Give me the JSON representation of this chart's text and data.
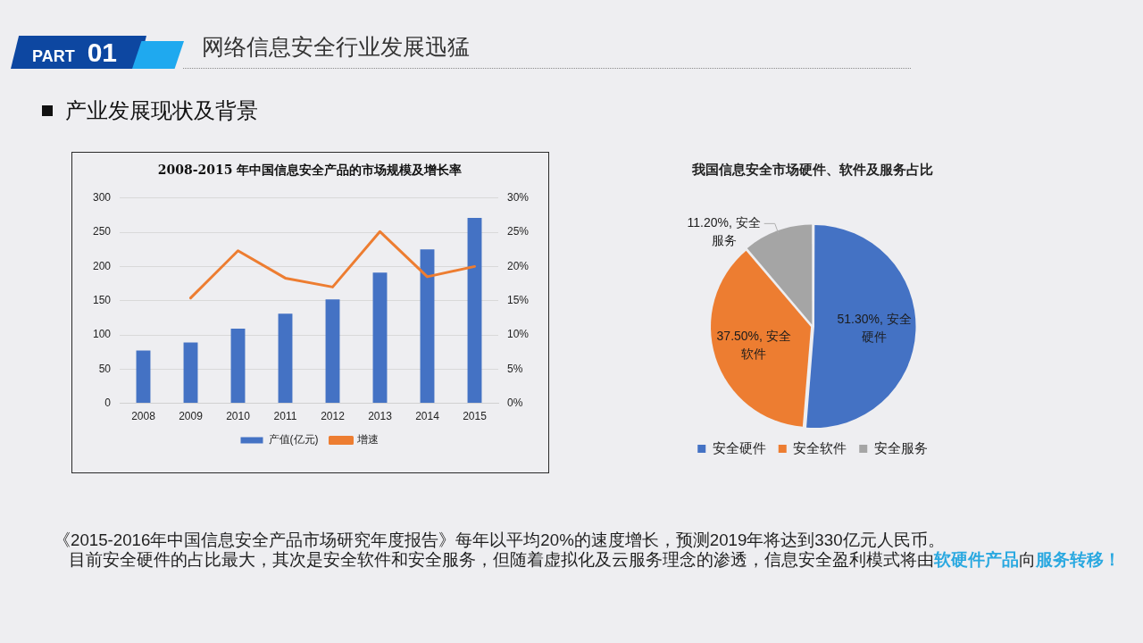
{
  "chart_data": [
    {
      "type": "bar",
      "title": "2008-2015 年中国信息安全产品的市场规模及增长率",
      "categories": [
        "2008",
        "2009",
        "2010",
        "2011",
        "2012",
        "2013",
        "2014",
        "2015"
      ],
      "series": [
        {
          "name": "产值(亿元)",
          "type": "bar",
          "color": "#4472c4",
          "values": [
            77,
            89,
            109,
            131,
            152,
            191,
            225,
            271
          ]
        },
        {
          "name": "增速",
          "type": "line",
          "axis": "y2",
          "color": "#ed7d31",
          "values": [
            null,
            15.4,
            22.3,
            18.3,
            17.0,
            25.1,
            18.5,
            20.0
          ]
        }
      ],
      "ylim": [
        0,
        300
      ],
      "yticks": [
        0,
        50,
        100,
        150,
        200,
        250,
        300
      ],
      "y2lim": [
        0,
        30
      ],
      "y2ticks": [
        {
          "value": 0,
          "label": "0%"
        },
        {
          "value": 5,
          "label": "5%"
        },
        {
          "value": 10,
          "label": "10%"
        },
        {
          "value": 15,
          "label": "15%"
        },
        {
          "value": 20,
          "label": "20%"
        },
        {
          "value": 25,
          "label": "25%"
        },
        {
          "value": 30,
          "label": "30%"
        }
      ],
      "grid": "y",
      "legend": "bottom",
      "marker": "none",
      "line_style": "solid",
      "annotations": [
        "PART 01",
        "网络信息安全行业发展迅猛",
        "产业发展现状及背景",
        "《2015-2016年中国信息安全产品市场研究年度报告》每年以平均20%的速度增长，预测2019年将达到330亿元人民币。",
        "目前安全硬件的占比最大，其次是安全软件和安全服务，但随着虚拟化及云服务理念的渗透，信息安全盈利模式将由",
        "软硬件产品",
        "向",
        "服务转移！"
      ]
    },
    {
      "type": "pie",
      "title": "我国信息安全市场硬件、软件及服务占比",
      "categories": [
        "安全硬件",
        "安全软件",
        "安全服务"
      ],
      "values": [
        51.3,
        37.5,
        11.2
      ],
      "colors": [
        "#4472c4",
        "#ed7d31",
        "#a5a5a5"
      ],
      "value_labels": [
        "51.30%, 安全硬件",
        "37.50%, 安全软件",
        "11.20%, 安全服务"
      ],
      "legend": "bottom"
    }
  ]
}
